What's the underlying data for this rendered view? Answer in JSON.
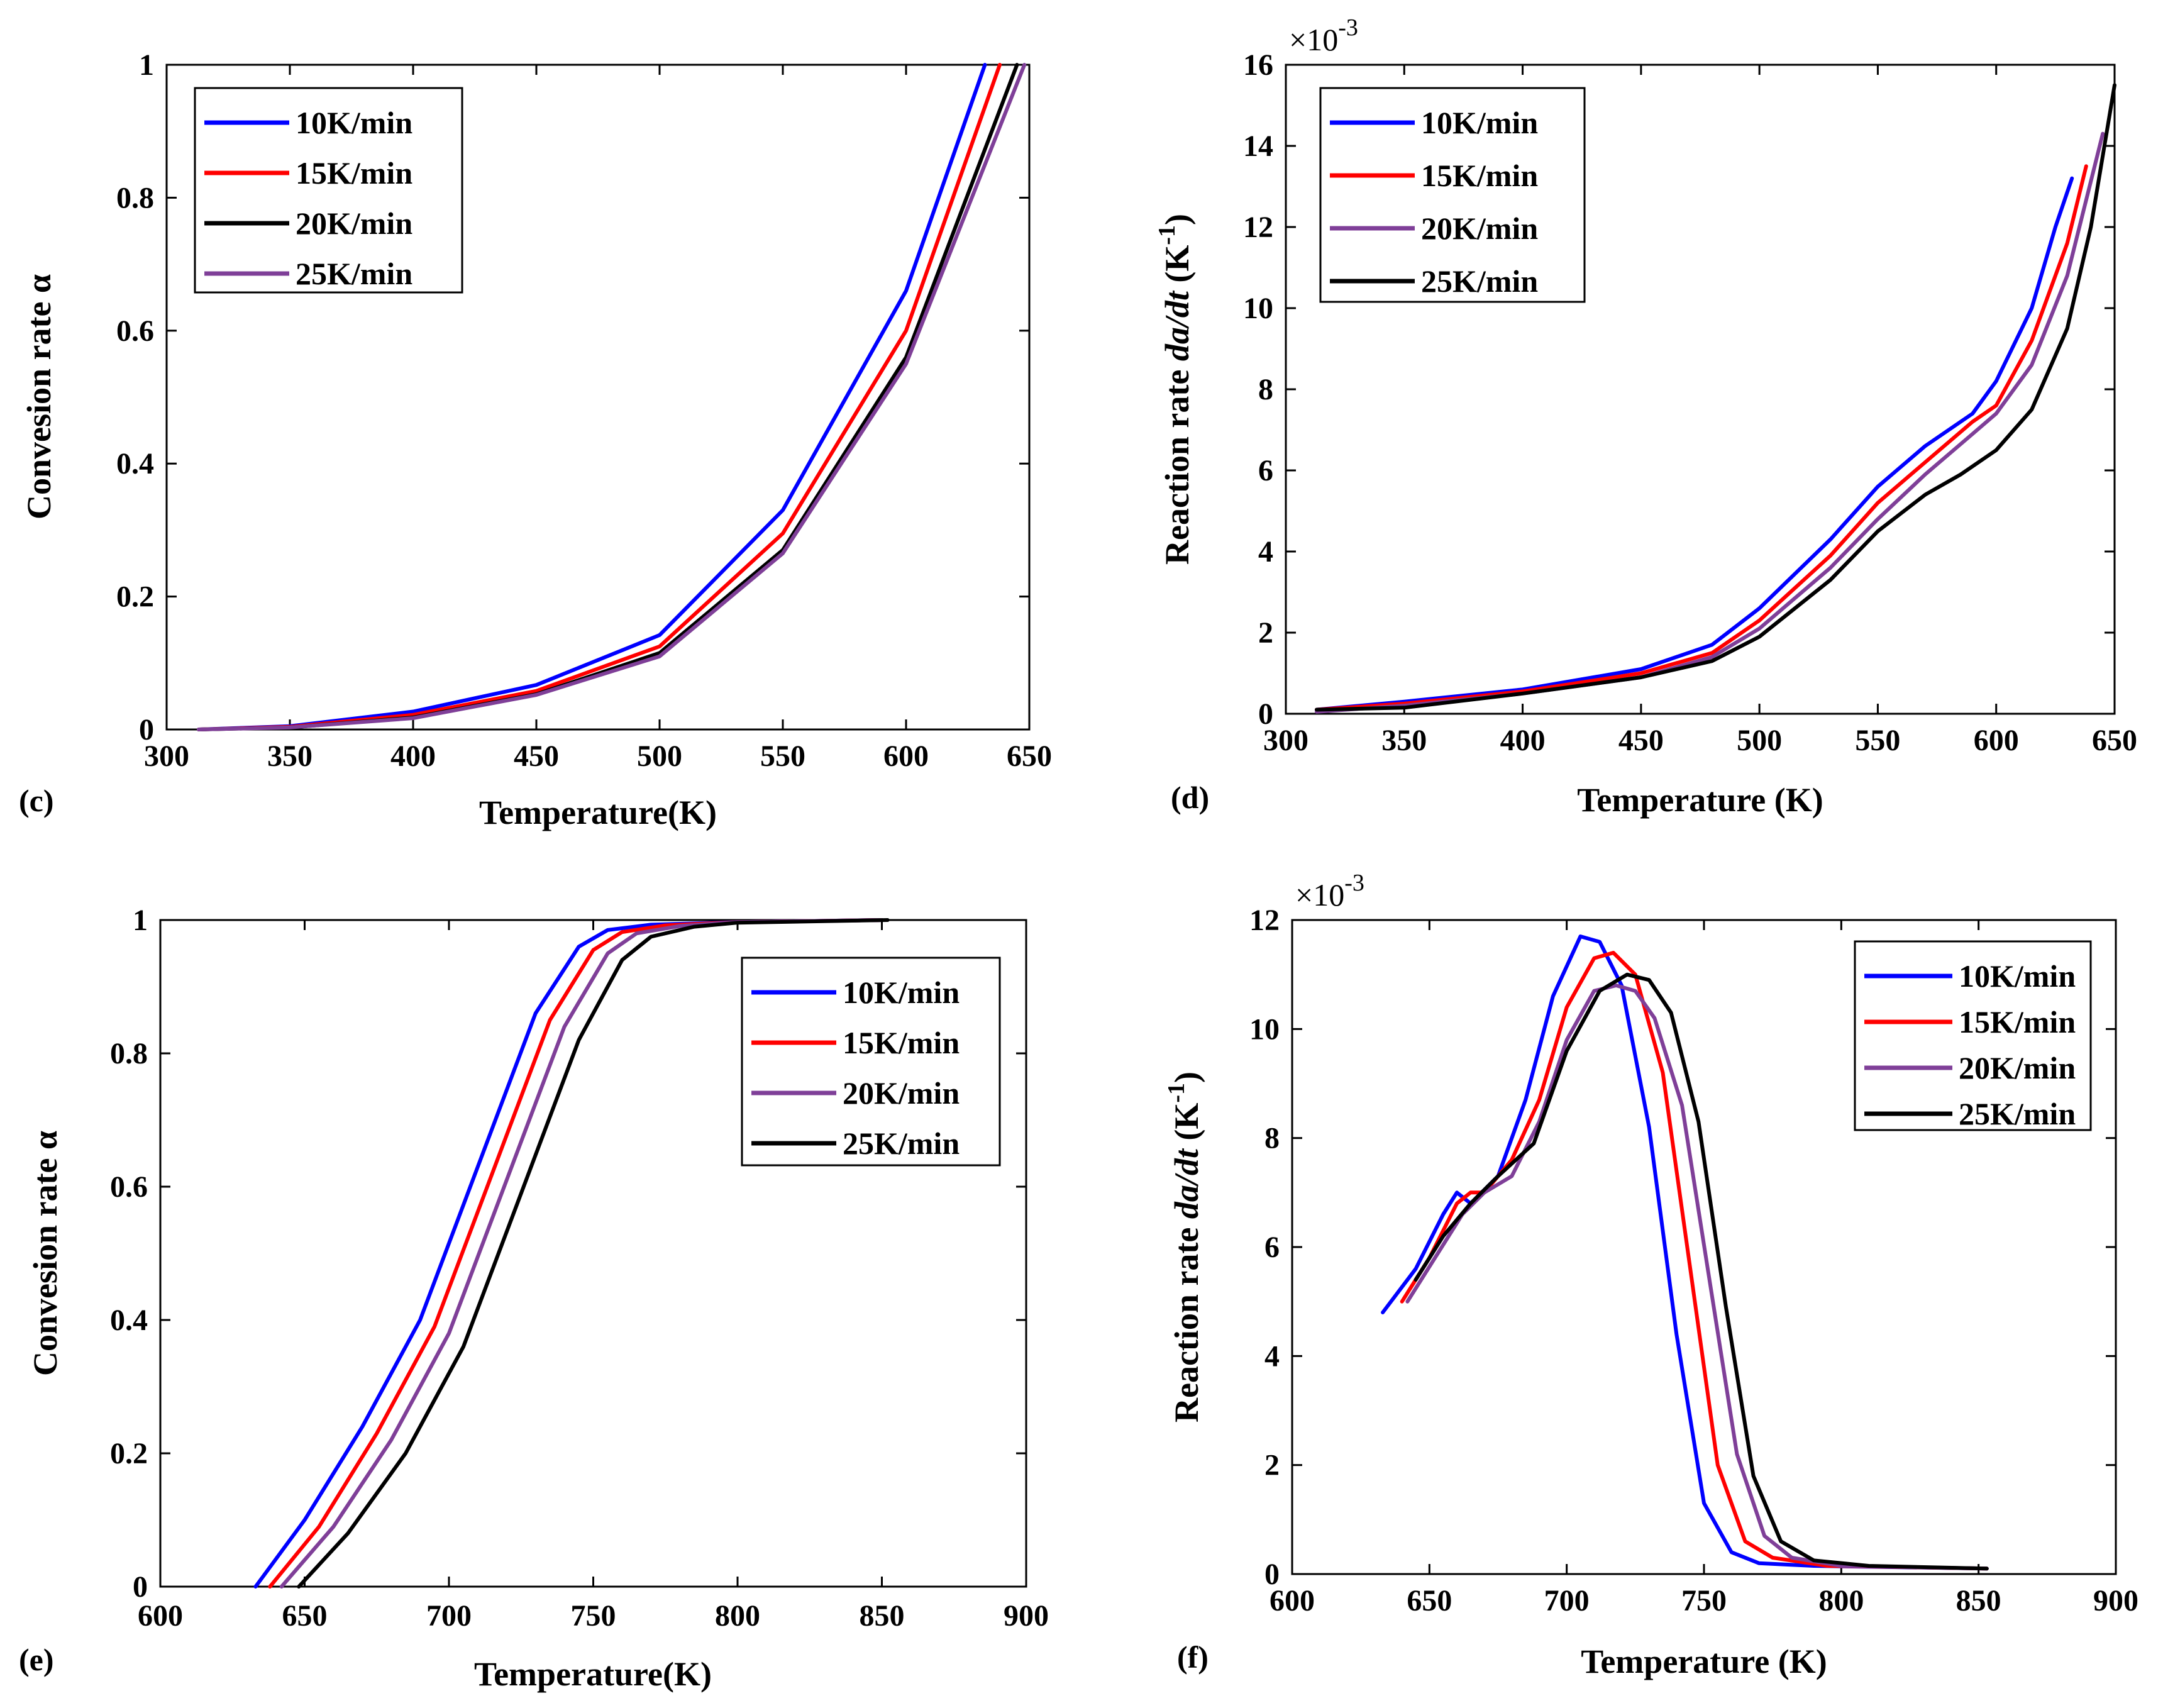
{
  "chart_data": [
    {
      "id": "c",
      "type": "line",
      "panel_label": "(c)",
      "xlabel": "Temperature(K)",
      "ylabel": "Convesion rate α",
      "xlim": [
        300,
        650
      ],
      "ylim": [
        0,
        1
      ],
      "xticks": [
        "300",
        "350",
        "400",
        "450",
        "500",
        "550",
        "600",
        "650"
      ],
      "yticks": [
        "0",
        "0.2",
        "0.4",
        "0.6",
        "0.8",
        "1"
      ],
      "legend_position": "top-left",
      "series": [
        {
          "name": "10K/min",
          "color": "#0000ff",
          "x": [
            313,
            350,
            400,
            450,
            500,
            550,
            600,
            632
          ],
          "y": [
            0,
            0.005,
            0.027,
            0.067,
            0.142,
            0.33,
            0.66,
            1.0
          ]
        },
        {
          "name": "15K/min",
          "color": "#ff0000",
          "x": [
            313,
            350,
            400,
            450,
            500,
            550,
            600,
            638
          ],
          "y": [
            0,
            0.004,
            0.022,
            0.058,
            0.125,
            0.295,
            0.6,
            1.0
          ]
        },
        {
          "name": "20K/min",
          "color": "#000000",
          "x": [
            313,
            350,
            400,
            450,
            500,
            550,
            600,
            645
          ],
          "y": [
            0,
            0.003,
            0.018,
            0.053,
            0.115,
            0.27,
            0.56,
            1.0
          ]
        },
        {
          "name": "25K/min",
          "color": "#7f3f98",
          "x": [
            313,
            350,
            400,
            450,
            500,
            550,
            600,
            648
          ],
          "y": [
            0,
            0.003,
            0.017,
            0.052,
            0.11,
            0.265,
            0.55,
            1.0
          ]
        }
      ]
    },
    {
      "id": "d",
      "type": "line",
      "panel_label": "(d)",
      "xlabel": "Temperature (K)",
      "ylabel": "Reaction rate da/dt (K⁻¹)",
      "ylabel_parts": {
        "pre": "Reaction rate ",
        "italic": "da/dt",
        "post": " (K",
        "sup": "-1",
        "end": ")"
      },
      "multiplier": "×10",
      "multiplier_exp": "-3",
      "xlim": [
        300,
        650
      ],
      "ylim": [
        0,
        16
      ],
      "xticks": [
        "300",
        "350",
        "400",
        "450",
        "500",
        "550",
        "600",
        "650"
      ],
      "yticks": [
        "0",
        "2",
        "4",
        "6",
        "8",
        "10",
        "12",
        "14",
        "16"
      ],
      "legend_position": "top-left",
      "series": [
        {
          "name": "10K/min",
          "color": "#0000ff",
          "x": [
            313,
            350,
            400,
            450,
            480,
            500,
            530,
            550,
            570,
            590,
            600,
            615,
            625,
            632
          ],
          "y": [
            0.1,
            0.3,
            0.6,
            1.1,
            1.7,
            2.6,
            4.3,
            5.6,
            6.6,
            7.4,
            8.2,
            10.0,
            12.0,
            13.2
          ]
        },
        {
          "name": "15K/min",
          "color": "#ff0000",
          "x": [
            313,
            350,
            400,
            450,
            480,
            500,
            530,
            550,
            570,
            590,
            600,
            615,
            630,
            638
          ],
          "y": [
            0.1,
            0.25,
            0.55,
            1.0,
            1.5,
            2.3,
            3.9,
            5.2,
            6.2,
            7.2,
            7.6,
            9.2,
            11.6,
            13.5
          ]
        },
        {
          "name": "20K/min",
          "color": "#7f3f98",
          "x": [
            313,
            350,
            400,
            450,
            480,
            500,
            530,
            550,
            570,
            590,
            600,
            615,
            630,
            645
          ],
          "y": [
            0.05,
            0.2,
            0.5,
            0.9,
            1.4,
            2.1,
            3.6,
            4.8,
            5.9,
            6.9,
            7.4,
            8.6,
            10.8,
            14.3
          ]
        },
        {
          "name": "25K/min",
          "color": "#000000",
          "x": [
            313,
            350,
            400,
            450,
            480,
            500,
            530,
            550,
            570,
            585,
            600,
            615,
            630,
            640,
            650
          ],
          "y": [
            0.1,
            0.15,
            0.5,
            0.9,
            1.3,
            1.9,
            3.3,
            4.5,
            5.4,
            5.9,
            6.5,
            7.5,
            9.5,
            12.0,
            15.5
          ]
        }
      ]
    },
    {
      "id": "e",
      "type": "line",
      "panel_label": "(e)",
      "xlabel": "Temperature(K)",
      "ylabel": "Convesion rate α",
      "xlim": [
        600,
        900
      ],
      "ylim": [
        0,
        1
      ],
      "xticks": [
        "600",
        "650",
        "700",
        "750",
        "800",
        "850",
        "900"
      ],
      "yticks": [
        "0",
        "0.2",
        "0.4",
        "0.6",
        "0.8",
        "1"
      ],
      "legend_position": "top-right",
      "series": [
        {
          "name": "10K/min",
          "color": "#0000ff",
          "x": [
            633,
            650,
            670,
            690,
            710,
            730,
            745,
            755,
            770,
            800,
            850
          ],
          "y": [
            0,
            0.1,
            0.24,
            0.4,
            0.63,
            0.86,
            0.96,
            0.985,
            0.993,
            0.997,
            1.0
          ]
        },
        {
          "name": "15K/min",
          "color": "#ff0000",
          "x": [
            638,
            655,
            675,
            695,
            715,
            735,
            750,
            760,
            775,
            800,
            850
          ],
          "y": [
            0,
            0.09,
            0.23,
            0.39,
            0.62,
            0.85,
            0.955,
            0.982,
            0.992,
            0.997,
            1.0
          ]
        },
        {
          "name": "20K/min",
          "color": "#7f3f98",
          "x": [
            642,
            660,
            680,
            700,
            720,
            740,
            755,
            765,
            780,
            800,
            850
          ],
          "y": [
            0,
            0.09,
            0.22,
            0.38,
            0.61,
            0.84,
            0.95,
            0.98,
            0.991,
            0.997,
            1.0
          ]
        },
        {
          "name": "25K/min",
          "color": "#000000",
          "x": [
            648,
            665,
            685,
            705,
            725,
            745,
            760,
            770,
            785,
            800,
            852
          ],
          "y": [
            0,
            0.08,
            0.2,
            0.36,
            0.59,
            0.82,
            0.94,
            0.975,
            0.99,
            0.996,
            1.0
          ]
        }
      ]
    },
    {
      "id": "f",
      "type": "line",
      "panel_label": "(f)",
      "xlabel": "Temperature (K)",
      "ylabel": "Reaction rate da/dt (K⁻¹)",
      "ylabel_parts": {
        "pre": "Reaction rate ",
        "italic": "da/dt",
        "post": " (K",
        "sup": "-1",
        "end": ")"
      },
      "multiplier": "×10",
      "multiplier_exp": "-3",
      "xlim": [
        600,
        900
      ],
      "ylim": [
        0,
        12
      ],
      "xticks": [
        "600",
        "650",
        "700",
        "750",
        "800",
        "850",
        "900"
      ],
      "yticks": [
        "0",
        "2",
        "4",
        "6",
        "8",
        "10",
        "12"
      ],
      "legend_position": "top-right",
      "series": [
        {
          "name": "10K/min",
          "color": "#0000ff",
          "x": [
            633,
            645,
            655,
            660,
            665,
            675,
            685,
            695,
            705,
            712,
            720,
            730,
            740,
            750,
            760,
            770,
            790,
            853
          ],
          "y": [
            4.8,
            5.6,
            6.6,
            7.0,
            6.8,
            7.3,
            8.7,
            10.6,
            11.7,
            11.6,
            10.8,
            8.2,
            4.4,
            1.3,
            0.4,
            0.2,
            0.15,
            0.1
          ]
        },
        {
          "name": "15K/min",
          "color": "#ff0000",
          "x": [
            640,
            650,
            660,
            665,
            670,
            680,
            690,
            700,
            710,
            717,
            725,
            735,
            745,
            755,
            765,
            775,
            795,
            853
          ],
          "y": [
            5.0,
            5.8,
            6.8,
            7.0,
            7.0,
            7.6,
            8.7,
            10.4,
            11.3,
            11.4,
            11.0,
            9.2,
            5.6,
            2.0,
            0.6,
            0.3,
            0.15,
            0.1
          ]
        },
        {
          "name": "20K/min",
          "color": "#7f3f98",
          "x": [
            642,
            652,
            662,
            670,
            680,
            690,
            700,
            710,
            718,
            725,
            732,
            742,
            752,
            762,
            772,
            782,
            800,
            853
          ],
          "y": [
            5.0,
            5.8,
            6.6,
            7.0,
            7.3,
            8.3,
            9.8,
            10.7,
            10.8,
            10.7,
            10.2,
            8.6,
            5.4,
            2.2,
            0.7,
            0.3,
            0.15,
            0.1
          ]
        },
        {
          "name": "25K/min",
          "color": "#000000",
          "x": [
            645,
            655,
            665,
            675,
            688,
            700,
            712,
            722,
            730,
            738,
            748,
            758,
            768,
            778,
            790,
            810,
            853
          ],
          "y": [
            5.4,
            6.2,
            6.8,
            7.3,
            7.9,
            9.6,
            10.7,
            11.0,
            10.9,
            10.3,
            8.3,
            4.9,
            1.8,
            0.6,
            0.25,
            0.15,
            0.1
          ]
        }
      ]
    }
  ]
}
